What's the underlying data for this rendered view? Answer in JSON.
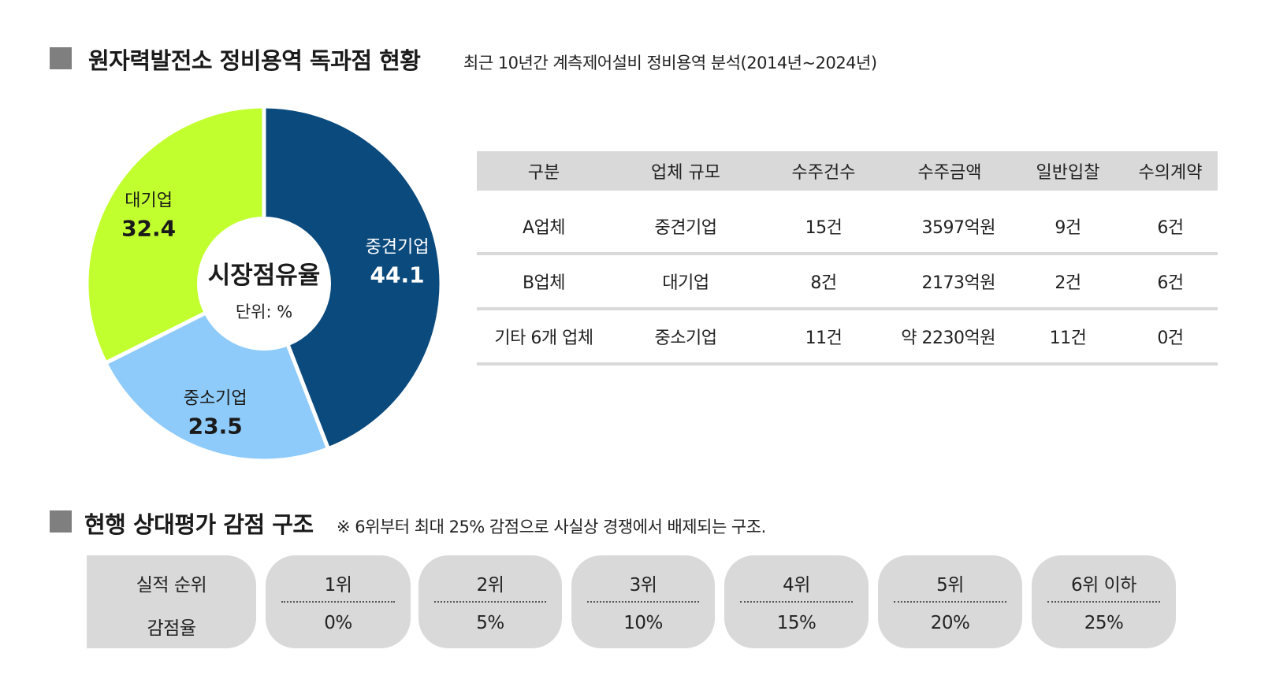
{
  "section1": {
    "title": "원자력발전소 정비용역 독과점 현황",
    "subtitle": "최근 10년간 계측제어설비 정비용역 분석(2014년~2024년)"
  },
  "chart_data": {
    "type": "pie",
    "variant": "donut",
    "title": "시장점유율",
    "unit_label": "단위: %",
    "slices": [
      {
        "label": "중견기업",
        "value": 44.1,
        "value_label": "44.1",
        "color": "#0b4a7d",
        "label_color": "#ffffff"
      },
      {
        "label": "중소기업",
        "value": 23.5,
        "value_label": "23.5",
        "color": "#8ecbfa",
        "label_color": "#1a1a1a"
      },
      {
        "label": "대기업",
        "value": 32.4,
        "value_label": "32.4",
        "color": "#c2ff2f",
        "label_color": "#1a1a1a"
      }
    ]
  },
  "table": {
    "headers": [
      "구분",
      "업체 규모",
      "수주건수",
      "수주금액",
      "일반입찰",
      "수의계약"
    ],
    "rows": [
      [
        "A업체",
        "중견기업",
        "15건",
        "3597억원",
        "9건",
        "6건"
      ],
      [
        "B업체",
        "대기업",
        "8건",
        "2173억원",
        "2건",
        "6건"
      ],
      [
        "기타 6개 업체",
        "중소기업",
        "11건",
        "약 2230억원",
        "11건",
        "0건"
      ]
    ]
  },
  "section2": {
    "title": "현행 상대평가 감점 구조",
    "note": "※ 6위부터 최대 25% 감점으로 사실상 경쟁에서 배제되는 구조."
  },
  "penalty": {
    "row_label_top": "실적 순위",
    "row_label_bottom": "감점율",
    "items": [
      {
        "rank": "1위",
        "rate": "0%"
      },
      {
        "rank": "2위",
        "rate": "5%"
      },
      {
        "rank": "3위",
        "rate": "10%"
      },
      {
        "rank": "4위",
        "rate": "15%"
      },
      {
        "rank": "5위",
        "rate": "20%"
      },
      {
        "rank": "6위 이하",
        "rate": "25%"
      }
    ]
  },
  "colors": {
    "marker": "#7f7f7f",
    "table_header_bg": "#d9d9d9",
    "pill_bg": "#d9d9d9"
  }
}
